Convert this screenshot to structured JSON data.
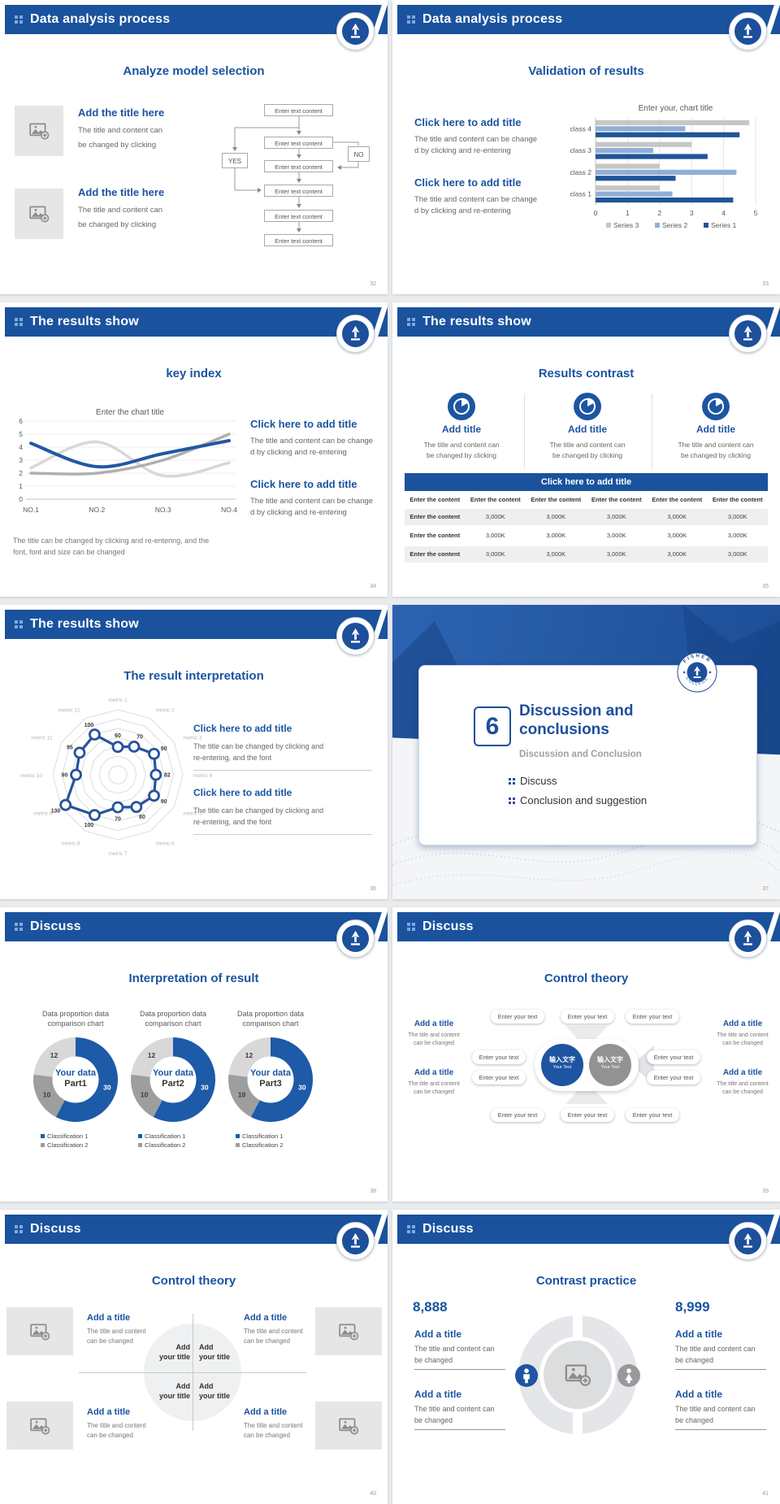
{
  "theme": {
    "page_bg": "#E9EBED",
    "header_bg": "#1A529E",
    "accent": "#1A54A0",
    "body_text": "#666666",
    "logo_top": "FISHER",
    "logo_bottom": "COLLEGE"
  },
  "slides": [
    {
      "page": "32",
      "header": "Data analysis process",
      "title": "Analyze model selection",
      "items": [
        {
          "title": "Add the title here",
          "line1": "The title and content can",
          "line2": "be changed by clicking"
        },
        {
          "title": "Add the title here",
          "line1": "The title and content can",
          "line2": "be changed by clicking"
        }
      ],
      "flow": {
        "box": "Enter text content",
        "yes": "YES",
        "no": "NO"
      }
    },
    {
      "page": "33",
      "header": "Data analysis process",
      "title": "Validation of results",
      "blocks": [
        {
          "title": "Click here to add title",
          "line1": "The title and content can be change",
          "line2": "d by clicking and re-entering"
        },
        {
          "title": "Click here to add title",
          "line1": "The title and content can be change",
          "line2": "d by clicking and re-entering"
        }
      ]
    },
    {
      "page": "34",
      "header": "The results show",
      "title": "key index",
      "blocks": [
        {
          "title": "Click here to add title",
          "line1": "The title and content can be change",
          "line2": "d by clicking and re-entering"
        },
        {
          "title": "Click here to add title",
          "line1": "The title and content can be change",
          "line2": "d by clicking and re-entering"
        }
      ],
      "footer1": "The title can be changed by clicking and re-entering, and the",
      "footer2": "font, font and size can be changed"
    },
    {
      "page": "35",
      "header": "The results show",
      "title": "Results contrast",
      "band": "Click here to add title",
      "features": [
        {
          "title": "Add title",
          "line1": "The title and content can",
          "line2": "be changed by clicking"
        },
        {
          "title": "Add title",
          "line1": "The title and content can",
          "line2": "be changed by clicking"
        },
        {
          "title": "Add title",
          "line1": "The title and content can",
          "line2": "be changed by clicking"
        }
      ],
      "table": {
        "header_cell": "Enter the content",
        "row_label": "Enter the content",
        "value": "3,000K",
        "columns": 6,
        "data_rows": 3
      }
    },
    {
      "page": "36",
      "header": "The results show",
      "title": "The result interpretation",
      "blocks": [
        {
          "title": "Click here to add  title",
          "line1": "The title can be changed by clicking and",
          "line2": "re-entering, and the font"
        },
        {
          "title": "Click here to add  title",
          "line1": "The title can be changed by clicking and",
          "line2": "re-entering, and the font"
        }
      ]
    },
    {
      "page": "37",
      "divider": {
        "number": "6",
        "title1": "Discussion and",
        "title2": "conclusions",
        "subtitle": "Discussion and Conclusion",
        "bullet1": "Discuss",
        "bullet2": "Conclusion and suggestion"
      }
    },
    {
      "page": "38",
      "header": "Discuss",
      "title": "Interpretation of result",
      "donuts": {
        "title1": "Data proportion data",
        "title2": "comparison chart",
        "center": "Your data",
        "parts": [
          "Part1",
          "Part2",
          "Part3"
        ],
        "legend1": "Classification 1",
        "legend2": "Classification 2"
      }
    },
    {
      "page": "39",
      "header": "Discuss",
      "title": "Control theory",
      "pill": "Enter your text",
      "center_cn": "输入文字",
      "center_en": "Your Text",
      "sides": [
        {
          "title": "Add a title",
          "line1": "The title and content",
          "line2": "can be changed"
        },
        {
          "title": "Add a title",
          "line1": "The title and content",
          "line2": "can be changed"
        },
        {
          "title": "Add a title",
          "line1": "The title and content",
          "line2": "can be changed"
        },
        {
          "title": "Add a title",
          "line1": "The title and content",
          "line2": "can be changed"
        }
      ]
    },
    {
      "page": "40",
      "header": "Discuss",
      "title": "Control theory",
      "blocks": [
        {
          "title": "Add a title",
          "line1": "The title and content",
          "line2": "can be changed"
        },
        {
          "title": "Add a title",
          "line1": "The title and content",
          "line2": "can be changed"
        },
        {
          "title": "Add a title",
          "line1": "The title and content",
          "line2": "can be changed"
        },
        {
          "title": "Add a title",
          "line1": "The title and content",
          "line2": "can be changed"
        }
      ],
      "quad1": "Add",
      "quad2": "your title"
    },
    {
      "page": "41",
      "header": "Discuss",
      "title": "Contrast practice",
      "num_left": "8,888",
      "num_right": "8,999",
      "blocks": [
        {
          "title": "Add a title",
          "line1": "The title and content can",
          "line2": "be changed"
        },
        {
          "title": "Add a title",
          "line1": "The title and content can",
          "line2": "be changed"
        },
        {
          "title": "Add a title",
          "line1": "The title and content can",
          "line2": "be changed"
        },
        {
          "title": "Add a title",
          "line1": "The title and content can",
          "line2": "be changed"
        }
      ]
    }
  ],
  "chart_data": [
    {
      "id": "bar-chart",
      "type": "bar",
      "orientation": "horizontal",
      "title": "Enter your, chart title",
      "categories": [
        "class 1",
        "class 2",
        "class 3",
        "class 4"
      ],
      "series": [
        {
          "name": "Series 1",
          "color": "#1F5596",
          "values": [
            4.3,
            2.5,
            3.5,
            4.5
          ]
        },
        {
          "name": "Series 2",
          "color": "#8FAFD9",
          "values": [
            2.4,
            4.4,
            1.8,
            2.8
          ]
        },
        {
          "name": "Series 3",
          "color": "#C6C6C6",
          "values": [
            2.0,
            2.0,
            3.0,
            4.8
          ]
        }
      ],
      "xlim": [
        0,
        5
      ],
      "xticks": [
        0,
        1,
        2,
        3,
        4,
        5
      ],
      "grid": true,
      "legend_position": "bottom"
    },
    {
      "id": "line-chart",
      "type": "line",
      "smooth": true,
      "title": "Enter the chart title",
      "categories": [
        "NO.1",
        "NO.2",
        "NO.3",
        "NO.4"
      ],
      "series": [
        {
          "name": "series-blue",
          "color": "#2157A4",
          "values": [
            4.3,
            2.5,
            3.5,
            4.5
          ]
        },
        {
          "name": "series-light-gray",
          "color": "#D8D8D8",
          "values": [
            2.4,
            4.4,
            1.8,
            2.8
          ]
        },
        {
          "name": "series-mid-gray",
          "color": "#AFAFAF",
          "values": [
            2.0,
            2.0,
            3.0,
            5.0
          ]
        }
      ],
      "ylim": [
        0,
        6
      ],
      "yticks": [
        0,
        1,
        2,
        3,
        4,
        5,
        6
      ],
      "grid": true,
      "legend_position": "none"
    },
    {
      "id": "radar-chart",
      "type": "radar",
      "labels": [
        "metric 1",
        "metric 2",
        "metric 3",
        "metric 4",
        "metric 5",
        "metric 6",
        "metric 7",
        "metric 8",
        "metric 9",
        "metric 10",
        "metric 11",
        "metric 12"
      ],
      "values": [
        60,
        70,
        90,
        82,
        90,
        80,
        70,
        100,
        130,
        90,
        95,
        100
      ],
      "max": 140,
      "rings": 7,
      "line_color": "#27539B"
    },
    {
      "id": "donut-charts",
      "type": "donut",
      "title": "Data proportion data comparison chart",
      "slices": [
        {
          "value": 30,
          "color": "#1D5AA8",
          "label_color": "#FFFFFF"
        },
        {
          "value": 10,
          "color": "#9C9EA0",
          "label_color": "#3A3A3A"
        },
        {
          "value": 12,
          "color": "#D8D8D8",
          "label_color": "#3A3A3A"
        }
      ],
      "legend": [
        "Classification 1",
        "Classification 2"
      ],
      "legend_colors": [
        "#1D5AA8",
        "#9C9EA0"
      ],
      "instances": [
        "Part1",
        "Part2",
        "Part3"
      ],
      "center_label": "Your data"
    }
  ]
}
